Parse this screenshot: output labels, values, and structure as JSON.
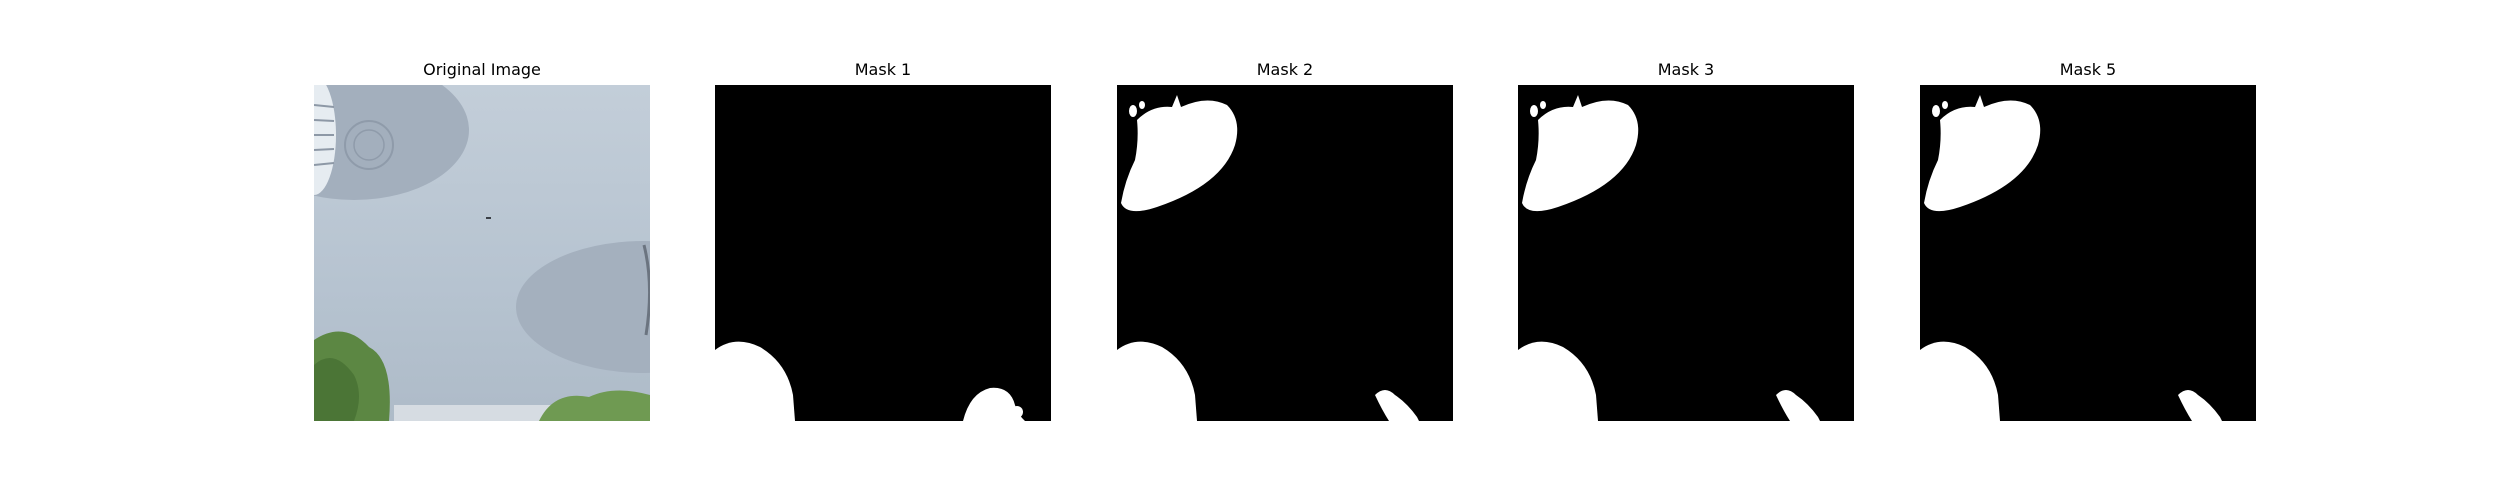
{
  "panels": [
    {
      "title": "Original Image",
      "kind": "photo"
    },
    {
      "title": "Mask 1",
      "kind": "mask"
    },
    {
      "title": "Mask 2",
      "kind": "mask"
    },
    {
      "title": "Mask 3",
      "kind": "mask"
    },
    {
      "title": "Mask 5",
      "kind": "mask"
    }
  ],
  "colors": {
    "background": "#ffffff",
    "mask_background": "#000000",
    "mask_foreground": "#ffffff",
    "sky": "#b7c4d2",
    "shade": "#a2aebb",
    "foliage": "#5c8743"
  }
}
